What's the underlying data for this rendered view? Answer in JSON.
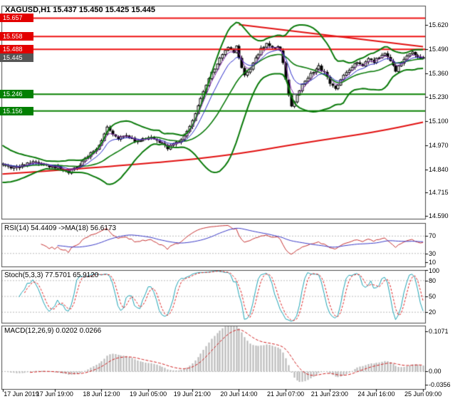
{
  "header": {
    "title": "XAGUSD,H1 15.437 15.450 15.425 15.445"
  },
  "colors": {
    "background": "#ffffff",
    "panel_border": "#4a4a4a",
    "grid_dash": "#b9b9b9",
    "candle_outline": "#000000",
    "candle_bull_fill": "#ffffff",
    "candle_bear_fill": "#000000",
    "bollinger": "#0a7a0a",
    "support_line": "#0a8002",
    "resistance_line": "#ee1111",
    "trend_ma_red": "#e11010",
    "ma_fast_blue": "#2727c8",
    "ma_fast_purple": "#8a2fb4",
    "badge_resistance_bg": "#e30000",
    "badge_support_bg": "#028002",
    "badge_current_bg": "#565656",
    "badge_text": "#ffffff",
    "rsi_line": "#c53131",
    "rsi_ma_line": "#3939c6",
    "stoch_k": "#1fa3b4",
    "stoch_d": "#dd2020",
    "macd_hist": "#b6b6b6",
    "macd_signal": "#cf2020",
    "axis_text": "#000000"
  },
  "chart_data": {
    "type": "candlestick",
    "symbol": "XAGUSD",
    "timeframe": "H1",
    "ohlc": {
      "open": 15.437,
      "high": 15.45,
      "low": 15.425,
      "close": 15.445
    },
    "total_bars": 154,
    "price_axis_ticks": [
      15.62,
      15.49,
      15.36,
      15.23,
      15.1,
      14.97,
      14.84,
      14.715,
      14.59
    ],
    "price_range": {
      "min": 14.574,
      "max": 15.724
    },
    "levels": {
      "resistance": [
        15.657,
        15.558,
        15.488
      ],
      "support": [
        15.246,
        15.156
      ],
      "current_price": 15.445
    },
    "red_ma_waypoints": [
      [
        0,
        14.815
      ],
      [
        40,
        14.855
      ],
      [
        80,
        14.91
      ],
      [
        110,
        14.985
      ],
      [
        135,
        15.04
      ],
      [
        153,
        15.095
      ]
    ],
    "descending_trendline": [
      [
        86,
        15.622
      ],
      [
        153,
        15.503
      ]
    ],
    "close_waypoints": [
      [
        0,
        14.87
      ],
      [
        3,
        14.845
      ],
      [
        6,
        14.858
      ],
      [
        9,
        14.872
      ],
      [
        12,
        14.88
      ],
      [
        15,
        14.862
      ],
      [
        18,
        14.858
      ],
      [
        21,
        14.845
      ],
      [
        24,
        14.822
      ],
      [
        27,
        14.852
      ],
      [
        30,
        14.896
      ],
      [
        33,
        14.94
      ],
      [
        35,
        14.968
      ],
      [
        37,
        15.03
      ],
      [
        38,
        15.075
      ],
      [
        40,
        15.035
      ],
      [
        42,
        15.005
      ],
      [
        45,
        15.022
      ],
      [
        48,
        14.995
      ],
      [
        51,
        15.006
      ],
      [
        54,
        15.012
      ],
      [
        57,
        14.985
      ],
      [
        60,
        14.955
      ],
      [
        62,
        14.972
      ],
      [
        64,
        14.992
      ],
      [
        66,
        15.02
      ],
      [
        68,
        15.075
      ],
      [
        70,
        15.14
      ],
      [
        72,
        15.22
      ],
      [
        74,
        15.3
      ],
      [
        76,
        15.36
      ],
      [
        78,
        15.415
      ],
      [
        80,
        15.465
      ],
      [
        82,
        15.495
      ],
      [
        84,
        15.47
      ],
      [
        85,
        15.5
      ],
      [
        86,
        15.445
      ],
      [
        88,
        15.345
      ],
      [
        90,
        15.38
      ],
      [
        92,
        15.44
      ],
      [
        94,
        15.49
      ],
      [
        96,
        15.515
      ],
      [
        98,
        15.49
      ],
      [
        100,
        15.505
      ],
      [
        101,
        15.48
      ],
      [
        102,
        15.42
      ],
      [
        103,
        15.33
      ],
      [
        104,
        15.24
      ],
      [
        105,
        15.185
      ],
      [
        107,
        15.235
      ],
      [
        109,
        15.295
      ],
      [
        111,
        15.34
      ],
      [
        113,
        15.37
      ],
      [
        115,
        15.395
      ],
      [
        117,
        15.36
      ],
      [
        119,
        15.305
      ],
      [
        121,
        15.28
      ],
      [
        123,
        15.325
      ],
      [
        125,
        15.365
      ],
      [
        127,
        15.395
      ],
      [
        129,
        15.425
      ],
      [
        131,
        15.405
      ],
      [
        133,
        15.44
      ],
      [
        135,
        15.42
      ],
      [
        137,
        15.45
      ],
      [
        139,
        15.47
      ],
      [
        141,
        15.425
      ],
      [
        143,
        15.375
      ],
      [
        145,
        15.41
      ],
      [
        147,
        15.45
      ],
      [
        149,
        15.475
      ],
      [
        151,
        15.44
      ],
      [
        153,
        15.445
      ]
    ],
    "x_labels": [
      {
        "label": "17 Jun 2019",
        "bar": 0
      },
      {
        "label": "17 Jun 19:00",
        "bar": 19
      },
      {
        "label": "18 Jun 12:00",
        "bar": 36
      },
      {
        "label": "19 Jun 05:00",
        "bar": 53
      },
      {
        "label": "19 Jun 21:00",
        "bar": 69
      },
      {
        "label": "20 Jun 14:00",
        "bar": 86
      },
      {
        "label": "21 Jun 07:00",
        "bar": 103
      },
      {
        "label": "21 Jun 23:00",
        "bar": 119
      },
      {
        "label": "24 Jun 16:00",
        "bar": 136
      },
      {
        "label": "25 Jun 09:00",
        "bar": 153
      }
    ],
    "panels": [
      {
        "name": "RSI",
        "label": "RSI(14) 54.4409 ->MA(18) 56.6173",
        "axis_ticks": [
          70,
          30,
          10
        ],
        "levels": [
          70,
          30
        ],
        "range": [
          0,
          100
        ]
      },
      {
        "name": "Stochastic",
        "label": "Stoch(5,3,3) 77.5701 65.9120",
        "axis_ticks": [
          100,
          80,
          50,
          20
        ],
        "levels": [
          80,
          50,
          20
        ],
        "range": [
          0,
          100
        ]
      },
      {
        "name": "MACD",
        "label": "MACD(12,26,9) 0.0202 0.0266",
        "axis_ticks": [
          "0.1071",
          "0.00",
          "-0.0356"
        ],
        "axis_values": [
          0.1071,
          0.0,
          -0.0356
        ],
        "range": [
          -0.047,
          0.123
        ]
      }
    ]
  }
}
